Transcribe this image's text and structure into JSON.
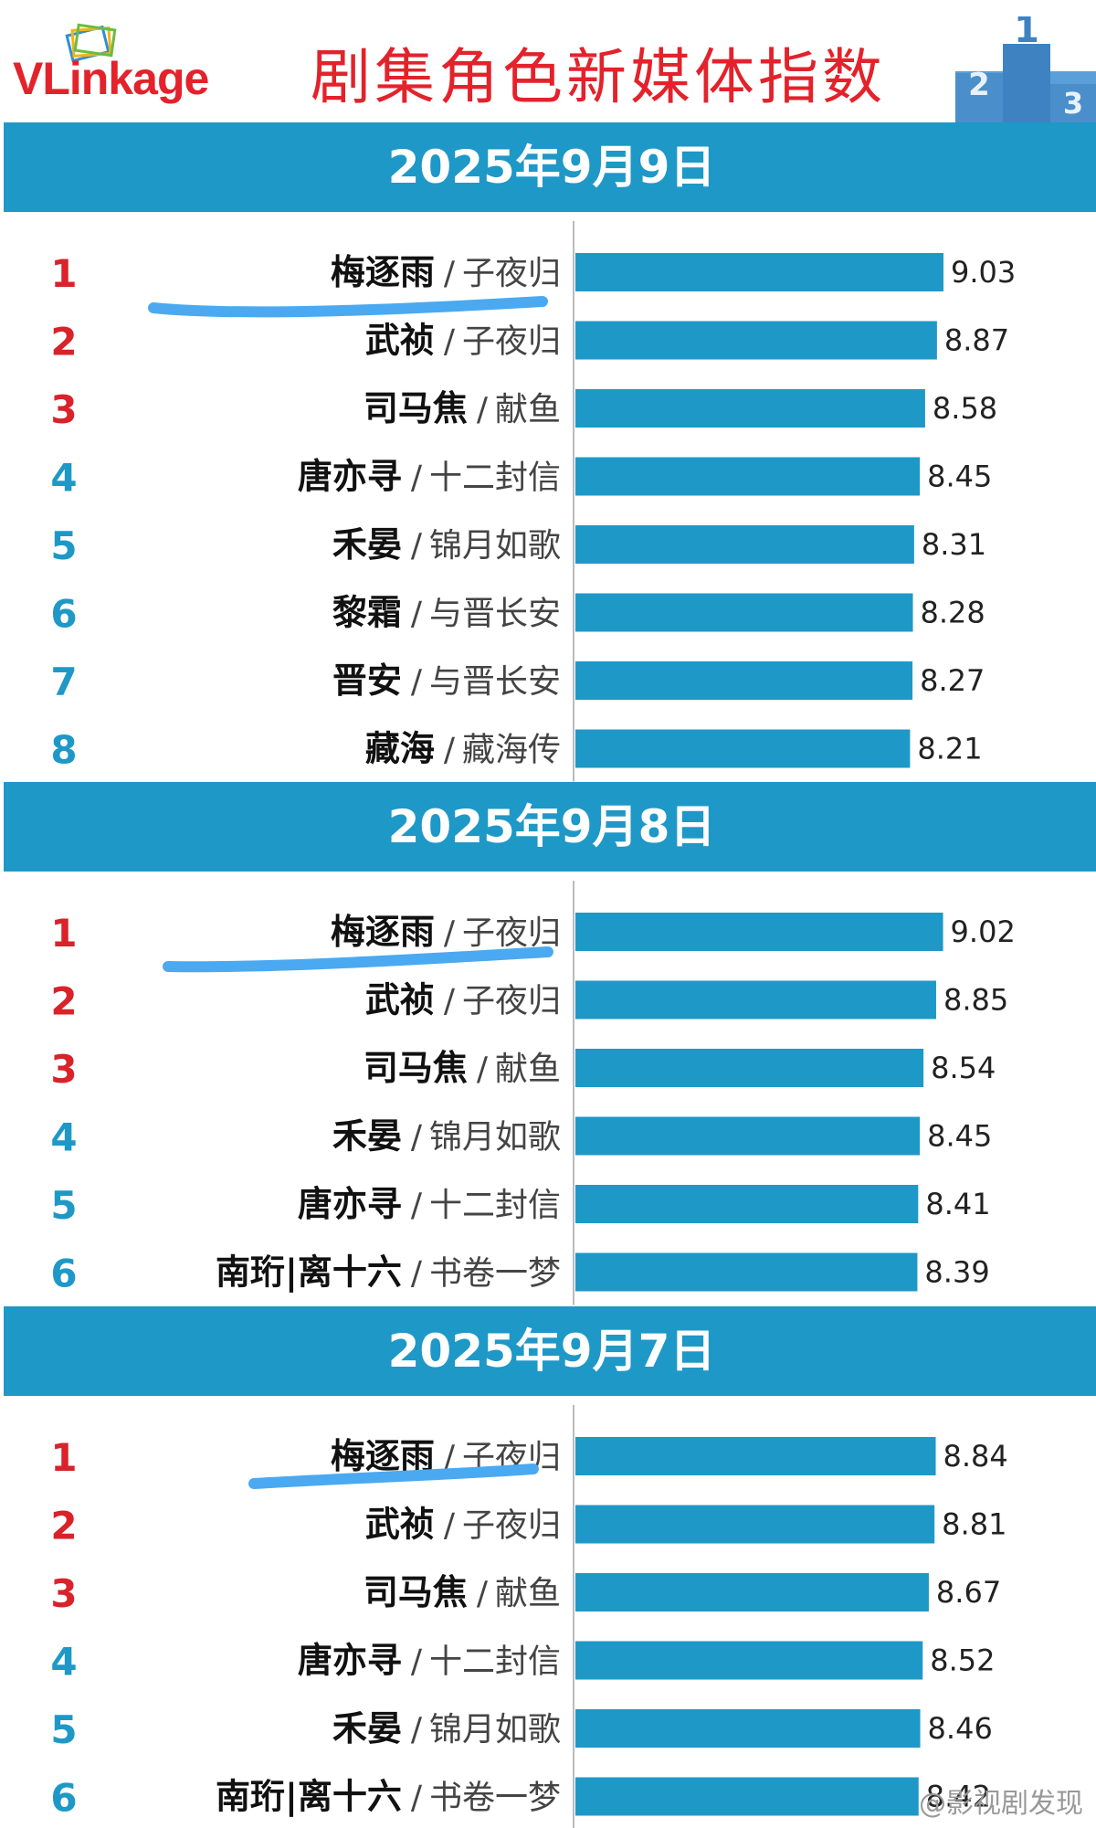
{
  "header": {
    "logo_text": "VLinkage",
    "title": "剧集角色新媒体指数",
    "podium_digits": [
      "2",
      "1",
      "3"
    ]
  },
  "colors": {
    "accent": "#1e98c7",
    "bar": "#1e98c7",
    "title_red": "#e3222b",
    "rank_top3": "#d9222a",
    "rank_rest": "#1e98c7",
    "highlight_stroke": "#4aa9f0"
  },
  "chart_data": [
    {
      "type": "bar",
      "orientation": "horizontal",
      "date": "2025年9月9日",
      "xlim": [
        0,
        9.5
      ],
      "ranks": [
        "1",
        "2",
        "3",
        "4",
        "5",
        "6",
        "7",
        "8"
      ],
      "roles": [
        "梅逐雨",
        "武祯",
        "司马焦",
        "唐亦寻",
        "禾晏",
        "黎霜",
        "晋安",
        "藏海"
      ],
      "dramas": [
        "子夜归",
        "子夜归",
        "献鱼",
        "十二封信",
        "锦月如歌",
        "与晋长安",
        "与晋长安",
        "藏海传"
      ],
      "values": [
        9.03,
        8.87,
        8.58,
        8.45,
        8.31,
        8.28,
        8.27,
        8.21
      ],
      "separator": "/"
    },
    {
      "type": "bar",
      "orientation": "horizontal",
      "date": "2025年9月8日",
      "xlim": [
        0,
        9.5
      ],
      "ranks": [
        "1",
        "2",
        "3",
        "4",
        "5",
        "6"
      ],
      "roles": [
        "梅逐雨",
        "武祯",
        "司马焦",
        "禾晏",
        "唐亦寻",
        "南珩|离十六"
      ],
      "dramas": [
        "子夜归",
        "子夜归",
        "献鱼",
        "锦月如歌",
        "十二封信",
        "书卷一梦"
      ],
      "values": [
        9.02,
        8.85,
        8.54,
        8.45,
        8.41,
        8.39
      ],
      "separator": "/"
    },
    {
      "type": "bar",
      "orientation": "horizontal",
      "date": "2025年9月7日",
      "xlim": [
        0,
        9.5
      ],
      "ranks": [
        "1",
        "2",
        "3",
        "4",
        "5",
        "6"
      ],
      "roles": [
        "梅逐雨",
        "武祯",
        "司马焦",
        "唐亦寻",
        "禾晏",
        "南珩|离十六"
      ],
      "dramas": [
        "子夜归",
        "子夜归",
        "献鱼",
        "十二封信",
        "锦月如歌",
        "书卷一梦"
      ],
      "values": [
        8.84,
        8.81,
        8.67,
        8.52,
        8.46,
        8.42
      ],
      "separator": "/"
    }
  ],
  "watermark": "@影视剧发现"
}
